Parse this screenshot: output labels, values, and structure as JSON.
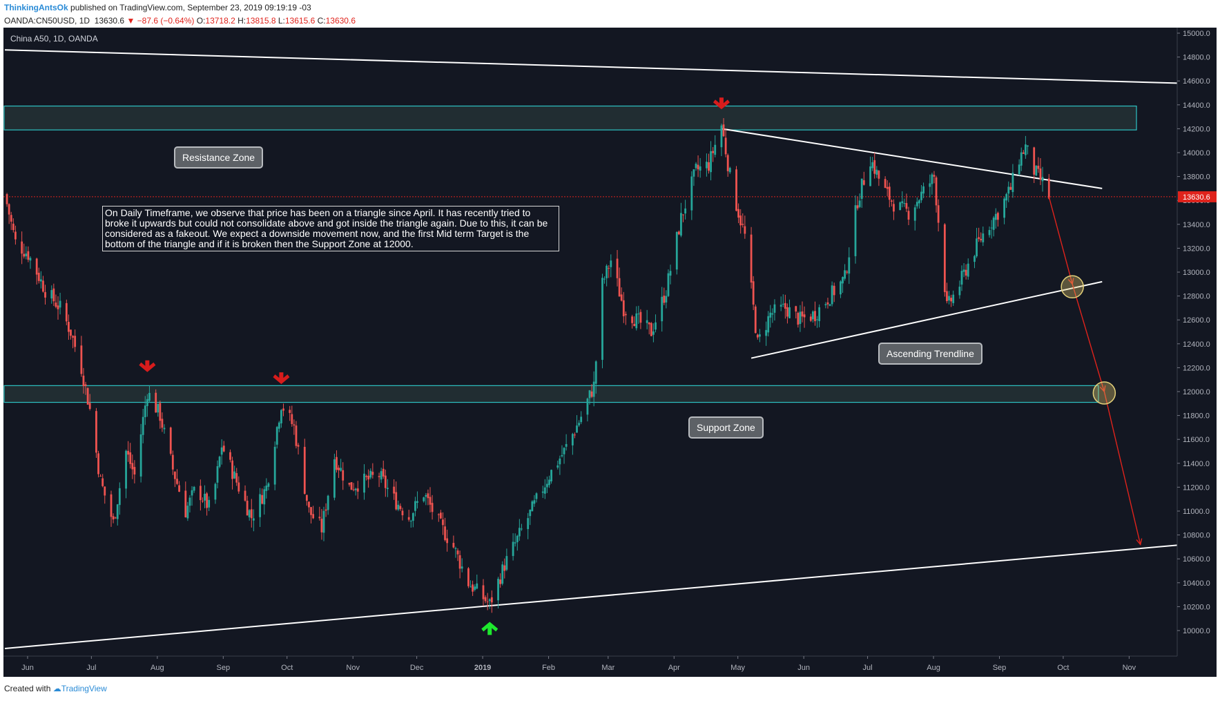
{
  "header": {
    "author": "ThinkingAntsOk",
    "published": "published on TradingView.com, September 23, 2019 09:19:19 -03",
    "symbol": "OANDA:CN50USD, 1D",
    "last": "13630.6",
    "change": "▼ −87.6 (−0.64%)",
    "o_label": "O:",
    "o_val": "13718.2",
    "h_label": "H:",
    "h_val": "13815.8",
    "l_label": "L:",
    "l_val": "13615.6",
    "c_label": "C:",
    "c_val": "13630.6"
  },
  "footer": {
    "created": "Created with",
    "brand": "TradingView"
  },
  "annotations": {
    "note": "On Daily Timeframe, we observe that price has been on a triangle since April. It has recently tried to broke it upwards but could not consolidate above and got inside the triangle again. Due to this, it can be considered as a fakeout. We expect a downside movement now, and the first Mid term Target is the bottom of the triangle and if it is broken then the Support Zone at 12000.",
    "resistance": "Resistance Zone",
    "support": "Support Zone",
    "trendline": "Ascending Trendline"
  },
  "chart_data": {
    "type": "candlestick",
    "title": "China A50, 1D, OANDA",
    "instrument": "OANDA:CN50USD",
    "timeframe": "1D",
    "x_ticks": [
      "Jun",
      "Jul",
      "Aug",
      "Sep",
      "Oct",
      "Nov",
      "Dec",
      "2019",
      "Feb",
      "Mar",
      "Apr",
      "May",
      "Jun",
      "Jul",
      "Aug",
      "Sep",
      "Oct",
      "Nov"
    ],
    "y_ticks": [
      15000,
      14800,
      14600,
      14400,
      14200,
      14000,
      13800,
      13600,
      13400,
      13200,
      13000,
      12800,
      12600,
      12400,
      12200,
      12000,
      11800,
      11600,
      11400,
      11200,
      11000,
      10800,
      10600,
      10400,
      10200,
      10000
    ],
    "ylim": [
      9800,
      15050
    ],
    "last_price": 13630.6,
    "last_price_label": "13630.6",
    "zones": [
      {
        "name": "Resistance Zone",
        "low": 14190,
        "high": 14390
      },
      {
        "name": "Support Zone",
        "low": 11910,
        "high": 12050
      }
    ],
    "trendlines": [
      {
        "name": "upper channel",
        "from": [
          "2018-05-20",
          14860
        ],
        "to": [
          "2019-12-15",
          14570
        ]
      },
      {
        "name": "lower channel",
        "from": [
          "2018-05-20",
          9850
        ],
        "to": [
          "2019-12-15",
          10750
        ]
      },
      {
        "name": "triangle top",
        "from": [
          "2019-04-22",
          14200
        ],
        "to": [
          "2019-10-18",
          13700
        ]
      },
      {
        "name": "Ascending Trendline",
        "from": [
          "2019-05-06",
          12280
        ],
        "to": [
          "2019-10-18",
          12920
        ]
      }
    ],
    "projection": [
      [
        "2019-09-23",
        13630
      ],
      [
        "2019-10-04",
        12900
      ],
      [
        "2019-10-19",
        12000
      ],
      [
        "2019-11-05",
        10720
      ]
    ],
    "key_points": [
      {
        "date": "2018-07-26",
        "price": 12030,
        "marker": "down"
      },
      {
        "date": "2018-09-27",
        "price": 11930,
        "marker": "down"
      },
      {
        "date": "2019-01-03",
        "price": 10200,
        "marker": "up"
      },
      {
        "date": "2019-04-22",
        "price": 14230,
        "marker": "down"
      },
      {
        "date": "2019-05-09",
        "price": 12300
      },
      {
        "date": "2019-07-01",
        "price": 14100
      },
      {
        "date": "2019-08-06",
        "price": 12640
      },
      {
        "date": "2019-09-12",
        "price": 14100
      },
      {
        "date": "2019-09-23",
        "price": 13630
      }
    ],
    "series": [
      {
        "name": "close",
        "points": [
          [
            "2018-05-20",
            13650
          ],
          [
            "2018-05-25",
            13250
          ],
          [
            "2018-05-31",
            13150
          ],
          [
            "2018-06-08",
            12850
          ],
          [
            "2018-06-15",
            12700
          ],
          [
            "2018-06-20",
            12500
          ],
          [
            "2018-06-25",
            12200
          ],
          [
            "2018-06-29",
            11850
          ],
          [
            "2018-07-04",
            11250
          ],
          [
            "2018-07-10",
            10900
          ],
          [
            "2018-07-16",
            11500
          ],
          [
            "2018-07-20",
            11300
          ],
          [
            "2018-07-26",
            12000
          ],
          [
            "2018-08-01",
            11800
          ],
          [
            "2018-08-07",
            11350
          ],
          [
            "2018-08-13",
            11000
          ],
          [
            "2018-08-18",
            11200
          ],
          [
            "2018-08-25",
            11000
          ],
          [
            "2018-08-30",
            11550
          ],
          [
            "2018-09-07",
            11200
          ],
          [
            "2018-09-13",
            10950
          ],
          [
            "2018-09-20",
            11200
          ],
          [
            "2018-09-27",
            11900
          ],
          [
            "2018-10-03",
            11700
          ],
          [
            "2018-10-10",
            11000
          ],
          [
            "2018-10-16",
            10850
          ],
          [
            "2018-10-22",
            11450
          ],
          [
            "2018-10-29",
            11200
          ],
          [
            "2018-11-05",
            11250
          ],
          [
            "2018-11-12",
            11300
          ],
          [
            "2018-11-19",
            11100
          ],
          [
            "2018-11-26",
            10950
          ],
          [
            "2018-12-03",
            11150
          ],
          [
            "2018-12-10",
            10900
          ],
          [
            "2018-12-17",
            10700
          ],
          [
            "2018-12-24",
            10400
          ],
          [
            "2019-01-03",
            10220
          ],
          [
            "2019-01-10",
            10550
          ],
          [
            "2019-01-17",
            10800
          ],
          [
            "2019-01-24",
            11050
          ],
          [
            "2019-01-31",
            11300
          ],
          [
            "2019-02-07",
            11500
          ],
          [
            "2019-02-14",
            11750
          ],
          [
            "2019-02-21",
            12050
          ],
          [
            "2019-02-25",
            12900
          ],
          [
            "2019-03-01",
            13100
          ],
          [
            "2019-03-07",
            12700
          ],
          [
            "2019-03-13",
            12600
          ],
          [
            "2019-03-20",
            12500
          ],
          [
            "2019-03-27",
            12850
          ],
          [
            "2019-04-03",
            13450
          ],
          [
            "2019-04-10",
            13850
          ],
          [
            "2019-04-16",
            13900
          ],
          [
            "2019-04-22",
            14230
          ],
          [
            "2019-04-27",
            13700
          ],
          [
            "2019-05-03",
            13300
          ],
          [
            "2019-05-09",
            12400
          ],
          [
            "2019-05-15",
            12650
          ],
          [
            "2019-05-22",
            12700
          ],
          [
            "2019-05-29",
            12600
          ],
          [
            "2019-06-05",
            12650
          ],
          [
            "2019-06-12",
            12800
          ],
          [
            "2019-06-19",
            12950
          ],
          [
            "2019-06-25",
            13600
          ],
          [
            "2019-07-01",
            13950
          ],
          [
            "2019-07-07",
            13700
          ],
          [
            "2019-07-13",
            13550
          ],
          [
            "2019-07-19",
            13500
          ],
          [
            "2019-07-25",
            13650
          ],
          [
            "2019-07-31",
            13800
          ],
          [
            "2019-08-06",
            12700
          ],
          [
            "2019-08-12",
            12900
          ],
          [
            "2019-08-18",
            13150
          ],
          [
            "2019-08-24",
            13350
          ],
          [
            "2019-08-30",
            13500
          ],
          [
            "2019-09-05",
            13700
          ],
          [
            "2019-09-09",
            13950
          ],
          [
            "2019-09-12",
            14050
          ],
          [
            "2019-09-16",
            13850
          ],
          [
            "2019-09-20",
            13750
          ],
          [
            "2019-09-23",
            13630
          ]
        ]
      }
    ]
  }
}
